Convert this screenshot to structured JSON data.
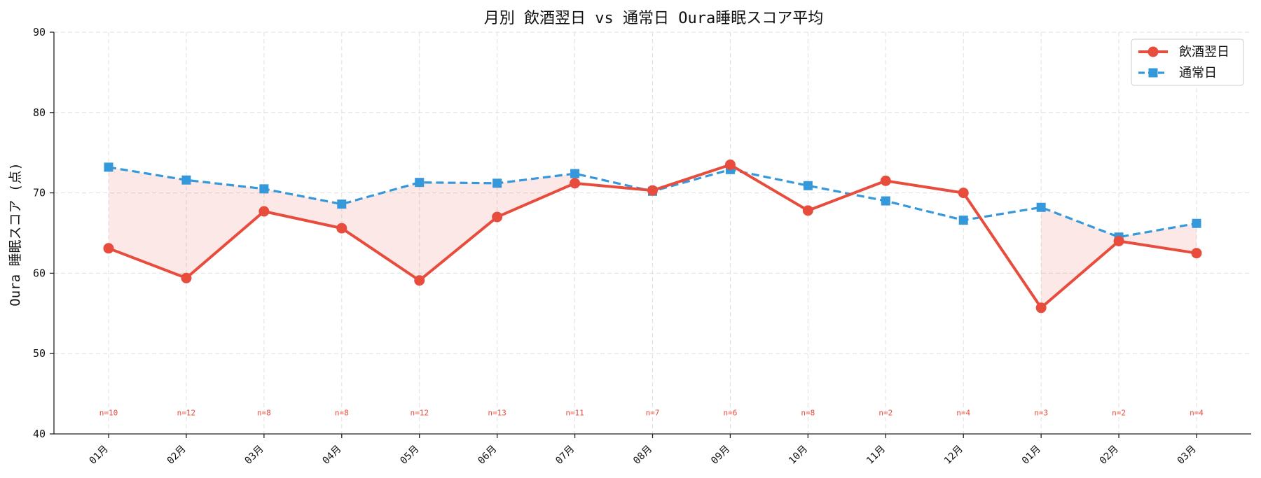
{
  "chart_data": {
    "type": "line",
    "title": "月別 飲酒翌日 vs 通常日 Oura睡眠スコア平均",
    "xlabel": "",
    "ylabel": "Oura 睡眠スコア (点)",
    "ylim": [
      40,
      90
    ],
    "yticks": [
      "40",
      "50",
      "60",
      "70",
      "80",
      "90"
    ],
    "categories": [
      "01月",
      "02月",
      "03月",
      "04月",
      "05月",
      "06月",
      "07月",
      "08月",
      "09月",
      "10月",
      "11月",
      "12月",
      "01月",
      "02月",
      "03月"
    ],
    "series": [
      {
        "name": "飲酒翌日",
        "color": "#e74c3c",
        "marker": "circle",
        "style": "solid",
        "values": [
          63.1,
          59.4,
          67.7,
          65.6,
          59.1,
          67.0,
          71.2,
          70.3,
          73.5,
          67.8,
          71.5,
          70.0,
          55.7,
          64.0,
          62.5
        ]
      },
      {
        "name": "通常日",
        "color": "#3498db",
        "marker": "square",
        "style": "dashed",
        "values": [
          73.2,
          71.6,
          70.5,
          68.6,
          71.3,
          71.2,
          72.4,
          70.2,
          72.9,
          70.9,
          69.0,
          66.6,
          68.2,
          64.5,
          66.2
        ]
      }
    ],
    "sample_counts": [
      "n=10",
      "n=12",
      "n=8",
      "n=8",
      "n=12",
      "n=13",
      "n=11",
      "n=7",
      "n=6",
      "n=8",
      "n=2",
      "n=4",
      "n=3",
      "n=2",
      "n=4"
    ],
    "fill_between": {
      "color": "#e74c3c",
      "condition": "飲酒翌日 < 通常日"
    },
    "grid": true,
    "legend": "top-right"
  }
}
